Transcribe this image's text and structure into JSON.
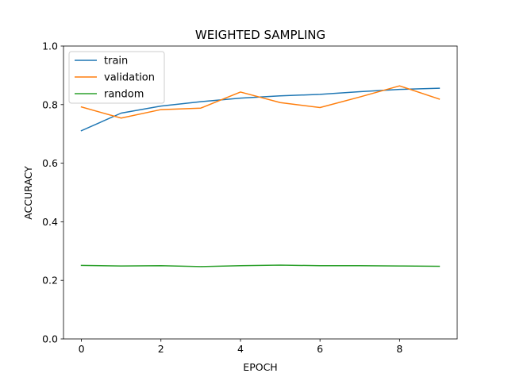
{
  "chart_data": {
    "type": "line",
    "title": "WEIGHTED SAMPLING",
    "xlabel": "EPOCH",
    "ylabel": "ACCURACY",
    "xlim": [
      -0.45,
      9.45
    ],
    "ylim": [
      0.0,
      1.0
    ],
    "xticks": [
      0,
      2,
      4,
      6,
      8
    ],
    "yticks": [
      0.0,
      0.2,
      0.4,
      0.6,
      0.8,
      1.0
    ],
    "xtick_labels": [
      "0",
      "2",
      "4",
      "6",
      "8"
    ],
    "ytick_labels": [
      "0.0",
      "0.2",
      "0.4",
      "0.6",
      "0.8",
      "1.0"
    ],
    "grid": false,
    "legend_position": "upper-left",
    "x": [
      0,
      1,
      2,
      3,
      4,
      5,
      6,
      7,
      8,
      9
    ],
    "series": [
      {
        "name": "train",
        "color": "#1f77b4",
        "values": [
          0.711,
          0.771,
          0.795,
          0.81,
          0.822,
          0.83,
          0.835,
          0.844,
          0.852,
          0.856
        ]
      },
      {
        "name": "validation",
        "color": "#ff7f0e",
        "values": [
          0.792,
          0.754,
          0.783,
          0.788,
          0.843,
          0.807,
          0.79,
          0.826,
          0.864,
          0.819
        ]
      },
      {
        "name": "random",
        "color": "#2ca02c",
        "values": [
          0.251,
          0.249,
          0.25,
          0.247,
          0.25,
          0.252,
          0.25,
          0.25,
          0.249,
          0.248
        ]
      }
    ]
  }
}
